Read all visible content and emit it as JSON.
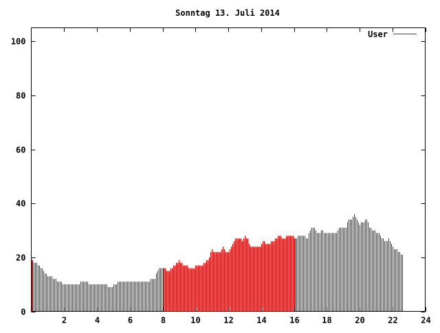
{
  "chart_data": {
    "type": "bar",
    "title": "Sonntag 13. Juli 2014",
    "xlabel": "",
    "ylabel": "",
    "xlim": [
      0,
      24
    ],
    "ylim": [
      0,
      105
    ],
    "x_ticks": [
      2,
      4,
      6,
      8,
      10,
      12,
      14,
      16,
      18,
      20,
      22,
      24
    ],
    "y_ticks": [
      0,
      20,
      40,
      60,
      80,
      100
    ],
    "grid": false,
    "legend_position": "top-right",
    "series": [
      {
        "name": "User",
        "color": "#cc0000",
        "interval_minutes": 5,
        "values": [
          19,
          19,
          18,
          18,
          18,
          17,
          17,
          16,
          16,
          15,
          14,
          14,
          13,
          13,
          13,
          13,
          12,
          12,
          12,
          11,
          11,
          11,
          11,
          10,
          10,
          10,
          10,
          10,
          10,
          10,
          10,
          10,
          10,
          10,
          10,
          10,
          11,
          11,
          11,
          11,
          11,
          11,
          10,
          10,
          10,
          10,
          10,
          10,
          10,
          10,
          10,
          10,
          10,
          10,
          10,
          10,
          9,
          9,
          9,
          9,
          10,
          10,
          10,
          11,
          11,
          11,
          11,
          11,
          11,
          11,
          11,
          11,
          11,
          11,
          11,
          11,
          11,
          11,
          11,
          11,
          11,
          11,
          11,
          11,
          11,
          11,
          11,
          12,
          12,
          12,
          12,
          14,
          15,
          16,
          16,
          16,
          16,
          16,
          16,
          15,
          15,
          15,
          16,
          16,
          17,
          17,
          18,
          18,
          19,
          18,
          18,
          17,
          17,
          17,
          17,
          16,
          16,
          16,
          16,
          16,
          17,
          17,
          17,
          17,
          17,
          17,
          18,
          18,
          19,
          19,
          20,
          22,
          23,
          22,
          22,
          22,
          22,
          22,
          22,
          23,
          24,
          23,
          22,
          22,
          22,
          23,
          24,
          25,
          26,
          27,
          27,
          27,
          27,
          27,
          26,
          27,
          28,
          27,
          27,
          25,
          24,
          24,
          24,
          24,
          24,
          24,
          24,
          24,
          25,
          26,
          26,
          25,
          25,
          25,
          25,
          26,
          26,
          26,
          27,
          27,
          28,
          28,
          28,
          27,
          27,
          27,
          28,
          28,
          28,
          28,
          28,
          28,
          27,
          27,
          27,
          28,
          28,
          28,
          28,
          28,
          28,
          27,
          27,
          29,
          30,
          31,
          31,
          31,
          30,
          29,
          29,
          29,
          30,
          30,
          29,
          29,
          29,
          29,
          29,
          29,
          29,
          29,
          29,
          29,
          30,
          31,
          31,
          31,
          31,
          31,
          31,
          33,
          34,
          34,
          34,
          35,
          36,
          35,
          34,
          33,
          32,
          33,
          33,
          33,
          34,
          34,
          33,
          31,
          31,
          30,
          30,
          30,
          29,
          29,
          29,
          28,
          27,
          27,
          26,
          26,
          26,
          27,
          26,
          25,
          24,
          23,
          23,
          23,
          22,
          22,
          21,
          21
        ]
      }
    ]
  }
}
